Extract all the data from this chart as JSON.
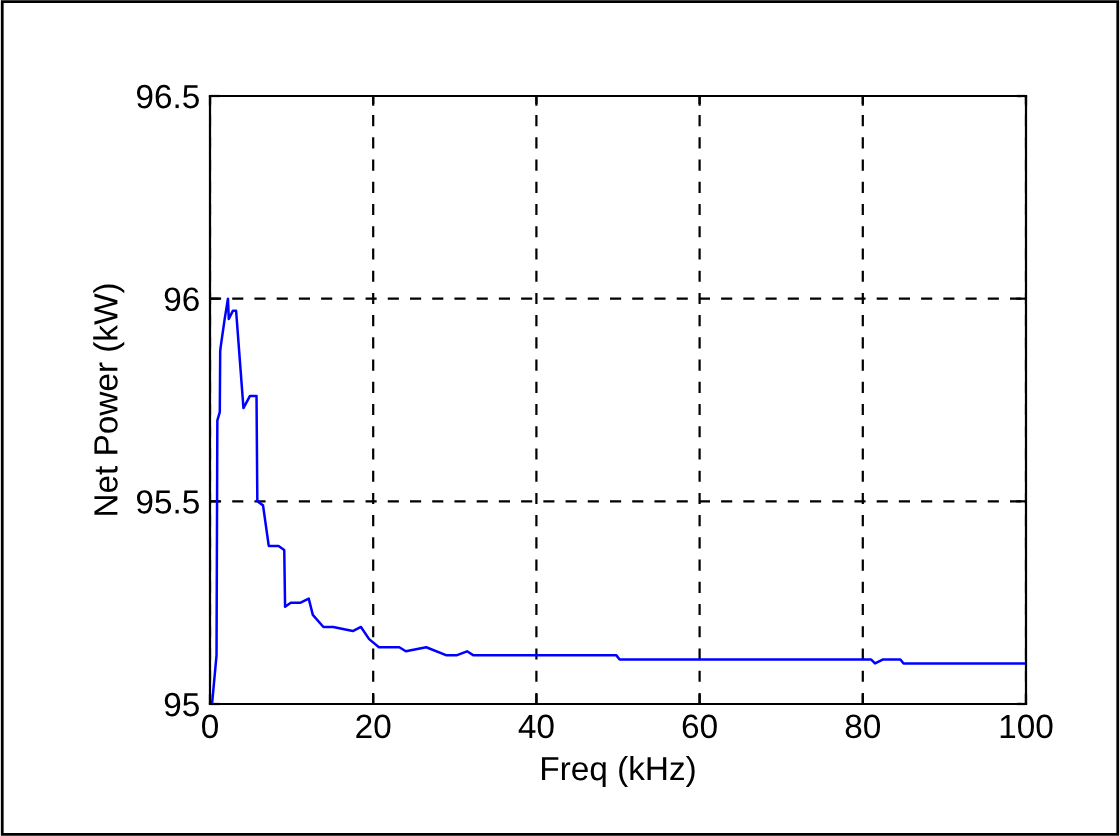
{
  "chart_data": {
    "type": "line",
    "xlabel": "Freq (kHz)",
    "ylabel": "Net Power (kW)",
    "xlim": [
      0,
      100
    ],
    "xticks": [
      0,
      20,
      40,
      60,
      80,
      100
    ],
    "ylim": [
      95,
      96.5
    ],
    "yticks": [
      95,
      95.5,
      96,
      96.5
    ],
    "grid": true,
    "line_style": "solid",
    "series": [
      {
        "color": "#0000ff",
        "x": [
          0.25,
          0.8,
          0.9,
          1.2,
          1.25,
          1.3,
          1.8,
          2.2,
          2.3,
          2.8,
          3.2,
          4.1,
          4.9,
          5.7,
          5.8,
          6.5,
          7.2,
          8.4,
          9.1,
          9.2,
          9.9,
          11.1,
          12.1,
          12.6,
          13.9,
          15.1,
          17.5,
          18.5,
          19.5,
          20.7,
          23.2,
          24,
          26.5,
          29,
          30.2,
          31.5,
          32.3,
          49.8,
          50.2,
          81,
          81.5,
          82.5,
          84.6,
          85,
          100
        ],
        "values": [
          95.0,
          95.12,
          95.7,
          95.72,
          95.87,
          95.88,
          95.95,
          96.0,
          95.95,
          95.97,
          95.97,
          95.73,
          95.76,
          95.76,
          95.5,
          95.49,
          95.39,
          95.39,
          95.38,
          95.24,
          95.25,
          95.25,
          95.26,
          95.22,
          95.19,
          95.19,
          95.18,
          95.19,
          95.16,
          95.14,
          95.14,
          95.13,
          95.14,
          95.12,
          95.12,
          95.13,
          95.12,
          95.12,
          95.11,
          95.11,
          95.1,
          95.11,
          95.11,
          95.1,
          95.1
        ]
      }
    ]
  }
}
